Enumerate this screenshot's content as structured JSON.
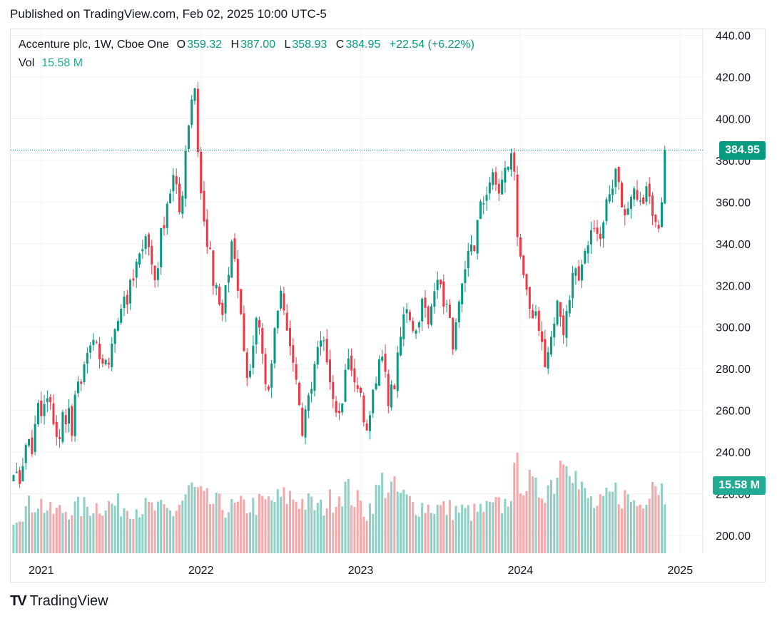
{
  "header": {
    "published": "Published on TradingView.com, Feb 02, 2025 10:00 UTC-5"
  },
  "legend": {
    "symbol": "Accenture plc, 1W, Cboe One",
    "o_label": "O",
    "o_value": "359.32",
    "h_label": "H",
    "h_value": "387.00",
    "l_label": "L",
    "l_value": "358.93",
    "c_label": "C",
    "c_value": "384.95",
    "change": "+22.54 (+6.22%)",
    "vol_label": "Vol",
    "vol_value": "15.58 M"
  },
  "price_tag": {
    "value": "384.95",
    "color": "#089981"
  },
  "volume_tag": {
    "value": "15.58 M",
    "color": "#22ab94"
  },
  "footer": {
    "brand": "TradingView",
    "logo": "TV"
  },
  "colors": {
    "up": "#089981",
    "down": "#f23645",
    "vol_up": "#8fd0c6",
    "vol_down": "#f5a8aa",
    "grid": "#f0f3fa"
  },
  "chart_data": {
    "type": "candlestick",
    "title": "Accenture plc, 1W, Cboe One",
    "interval": "1W",
    "ylim": [
      191,
      443
    ],
    "y_ticks": [
      "200.00",
      "220.00",
      "240.00",
      "260.00",
      "280.00",
      "300.00",
      "320.00",
      "340.00",
      "360.00",
      "380.00",
      "400.00",
      "420.00",
      "440.00"
    ],
    "y_tick_values": [
      200,
      220,
      240,
      260,
      280,
      300,
      320,
      340,
      360,
      380,
      400,
      420,
      440
    ],
    "x_ticks": [
      "2021",
      "2022",
      "2023",
      "2024",
      "2025"
    ],
    "x_tick_weeks": [
      9,
      61,
      113,
      165,
      217
    ],
    "last_close": 384.95,
    "last_volume": "15.58 M",
    "anchors": [
      [
        0,
        232
      ],
      [
        1,
        228
      ],
      [
        2,
        226
      ],
      [
        3,
        235
      ],
      [
        4,
        242
      ],
      [
        5,
        246
      ],
      [
        6,
        240
      ],
      [
        7,
        252
      ],
      [
        8,
        262
      ],
      [
        9,
        257
      ],
      [
        10,
        262
      ],
      [
        11,
        265
      ],
      [
        12,
        262
      ],
      [
        13,
        255
      ],
      [
        14,
        248
      ],
      [
        15,
        245
      ],
      [
        16,
        258
      ],
      [
        17,
        256
      ],
      [
        18,
        260
      ],
      [
        19,
        248
      ],
      [
        20,
        265
      ],
      [
        21,
        272
      ],
      [
        22,
        275
      ],
      [
        23,
        282
      ],
      [
        24,
        285
      ],
      [
        25,
        290
      ],
      [
        26,
        293
      ],
      [
        27,
        292
      ],
      [
        28,
        282
      ],
      [
        29,
        280
      ],
      [
        30,
        285
      ],
      [
        31,
        283
      ],
      [
        32,
        290
      ],
      [
        33,
        300
      ],
      [
        34,
        305
      ],
      [
        35,
        310
      ],
      [
        36,
        315
      ],
      [
        37,
        312
      ],
      [
        38,
        320
      ],
      [
        39,
        322
      ],
      [
        40,
        330
      ],
      [
        41,
        333
      ],
      [
        42,
        340
      ],
      [
        43,
        345
      ],
      [
        44,
        338
      ],
      [
        45,
        330
      ],
      [
        46,
        323
      ],
      [
        47,
        330
      ],
      [
        48,
        345
      ],
      [
        49,
        350
      ],
      [
        50,
        360
      ],
      [
        51,
        365
      ],
      [
        52,
        372
      ],
      [
        53,
        366
      ],
      [
        54,
        355
      ],
      [
        55,
        365
      ],
      [
        56,
        385
      ],
      [
        57,
        398
      ],
      [
        58,
        410
      ],
      [
        59,
        415
      ],
      [
        60,
        385
      ],
      [
        61,
        364
      ],
      [
        62,
        350
      ],
      [
        63,
        340
      ],
      [
        64,
        335
      ],
      [
        65,
        320
      ],
      [
        66,
        318
      ],
      [
        67,
        310
      ],
      [
        68,
        305
      ],
      [
        69,
        320
      ],
      [
        70,
        325
      ],
      [
        71,
        340
      ],
      [
        72,
        330
      ],
      [
        73,
        318
      ],
      [
        74,
        305
      ],
      [
        75,
        290
      ],
      [
        76,
        275
      ],
      [
        77,
        280
      ],
      [
        78,
        292
      ],
      [
        79,
        305
      ],
      [
        80,
        298
      ],
      [
        81,
        285
      ],
      [
        82,
        275
      ],
      [
        83,
        268
      ],
      [
        84,
        285
      ],
      [
        85,
        300
      ],
      [
        86,
        310
      ],
      [
        87,
        320
      ],
      [
        88,
        305
      ],
      [
        89,
        300
      ],
      [
        90,
        290
      ],
      [
        91,
        285
      ],
      [
        92,
        275
      ],
      [
        93,
        262
      ],
      [
        94,
        250
      ],
      [
        95,
        258
      ],
      [
        96,
        265
      ],
      [
        97,
        268
      ],
      [
        98,
        280
      ],
      [
        99,
        288
      ],
      [
        100,
        292
      ],
      [
        101,
        295
      ],
      [
        102,
        286
      ],
      [
        103,
        275
      ],
      [
        104,
        268
      ],
      [
        105,
        262
      ],
      [
        106,
        258
      ],
      [
        107,
        265
      ],
      [
        108,
        278
      ],
      [
        109,
        285
      ],
      [
        110,
        278
      ],
      [
        111,
        275
      ],
      [
        112,
        268
      ],
      [
        113,
        270
      ],
      [
        114,
        255
      ],
      [
        115,
        248
      ],
      [
        116,
        260
      ],
      [
        117,
        270
      ],
      [
        118,
        276
      ],
      [
        119,
        282
      ],
      [
        120,
        285
      ],
      [
        121,
        276
      ],
      [
        122,
        265
      ],
      [
        123,
        270
      ],
      [
        124,
        272
      ],
      [
        125,
        285
      ],
      [
        126,
        295
      ],
      [
        127,
        305
      ],
      [
        128,
        310
      ],
      [
        129,
        305
      ],
      [
        130,
        300
      ],
      [
        131,
        298
      ],
      [
        132,
        305
      ],
      [
        133,
        312
      ],
      [
        134,
        308
      ],
      [
        135,
        300
      ],
      [
        136,
        310
      ],
      [
        137,
        320
      ],
      [
        138,
        325
      ],
      [
        139,
        318
      ],
      [
        140,
        312
      ],
      [
        141,
        310
      ],
      [
        142,
        302
      ],
      [
        143,
        292
      ],
      [
        144,
        300
      ],
      [
        145,
        310
      ],
      [
        146,
        318
      ],
      [
        147,
        325
      ],
      [
        148,
        335
      ],
      [
        149,
        340
      ],
      [
        150,
        338
      ],
      [
        151,
        350
      ],
      [
        152,
        358
      ],
      [
        153,
        360
      ],
      [
        154,
        365
      ],
      [
        155,
        370
      ],
      [
        156,
        372
      ],
      [
        157,
        368
      ],
      [
        158,
        365
      ],
      [
        159,
        370
      ],
      [
        160,
        375
      ],
      [
        161,
        378
      ],
      [
        162,
        382
      ],
      [
        163,
        375
      ],
      [
        164,
        345
      ],
      [
        165,
        335
      ],
      [
        166,
        322
      ],
      [
        167,
        315
      ],
      [
        168,
        308
      ],
      [
        169,
        302
      ],
      [
        170,
        305
      ],
      [
        171,
        300
      ],
      [
        172,
        292
      ],
      [
        173,
        283
      ],
      [
        174,
        288
      ],
      [
        175,
        295
      ],
      [
        176,
        300
      ],
      [
        177,
        310
      ],
      [
        178,
        305
      ],
      [
        179,
        298
      ],
      [
        180,
        308
      ],
      [
        181,
        315
      ],
      [
        182,
        325
      ],
      [
        183,
        328
      ],
      [
        184,
        322
      ],
      [
        185,
        330
      ],
      [
        186,
        335
      ],
      [
        187,
        340
      ],
      [
        188,
        345
      ],
      [
        189,
        350
      ],
      [
        190,
        346
      ],
      [
        191,
        342
      ],
      [
        192,
        352
      ],
      [
        193,
        360
      ],
      [
        194,
        365
      ],
      [
        195,
        368
      ],
      [
        196,
        375
      ],
      [
        197,
        370
      ],
      [
        198,
        360
      ],
      [
        199,
        352
      ],
      [
        200,
        355
      ],
      [
        201,
        360
      ],
      [
        202,
        364
      ],
      [
        203,
        360
      ],
      [
        204,
        358
      ],
      [
        205,
        362
      ],
      [
        206,
        366
      ],
      [
        207,
        362
      ],
      [
        208,
        352
      ],
      [
        209,
        348
      ],
      [
        210,
        350
      ],
      [
        211,
        362
      ],
      [
        212,
        384.95
      ]
    ],
    "volume_ylim": [
      0,
      60
    ],
    "volume_anchors": [
      [
        0,
        18
      ],
      [
        8,
        26
      ],
      [
        12,
        20
      ],
      [
        20,
        22
      ],
      [
        30,
        24
      ],
      [
        45,
        22
      ],
      [
        52,
        20
      ],
      [
        58,
        32
      ],
      [
        62,
        26
      ],
      [
        70,
        22
      ],
      [
        80,
        24
      ],
      [
        90,
        28
      ],
      [
        100,
        22
      ],
      [
        108,
        32
      ],
      [
        115,
        20
      ],
      [
        120,
        35
      ],
      [
        130,
        24
      ],
      [
        140,
        22
      ],
      [
        150,
        20
      ],
      [
        160,
        24
      ],
      [
        164,
        40
      ],
      [
        170,
        30
      ],
      [
        176,
        36
      ],
      [
        180,
        56
      ],
      [
        184,
        32
      ],
      [
        190,
        22
      ],
      [
        196,
        30
      ],
      [
        204,
        24
      ],
      [
        208,
        38
      ],
      [
        212,
        30
      ]
    ]
  }
}
